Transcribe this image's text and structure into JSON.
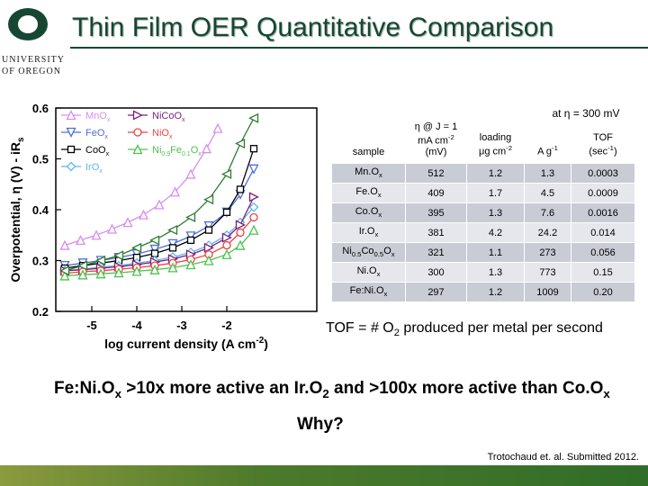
{
  "logo": {
    "line1": "UNIVERSITY",
    "line2": "OF OREGON",
    "color": "#154733",
    "accent": "#fee11a"
  },
  "slide": {
    "title": "Thin Film OER Quantitative Comparison"
  },
  "chart_data": {
    "type": "line",
    "xlabel_main": "log current density (A cm",
    "xlabel_sup": "-2",
    "xlabel_tail": ")",
    "ylabel_main": "Overpotential, η (V) - iR",
    "ylabel_sub": "s",
    "xlim": [
      -5.8,
      0.0
    ],
    "ylim": [
      0.2,
      0.6
    ],
    "xticks": [
      -5,
      -4,
      -3,
      -2
    ],
    "xtick_labels": [
      "-5",
      "-4",
      "-3",
      "-2"
    ],
    "yticks": [
      0.2,
      0.3,
      0.4,
      0.5,
      0.6
    ],
    "ytick_labels": [
      "0.2",
      "0.3",
      "0.4",
      "0.5",
      "0.6"
    ],
    "legend_position": "top-left",
    "series": [
      {
        "name": "MnOx",
        "legend_main": "MnO",
        "legend_sub": "x",
        "legend_sub2": "",
        "legend_rest": "",
        "color": "#d98cf0",
        "marker": "triangle-up",
        "x": [
          -5.6,
          -5.25,
          -4.9,
          -4.55,
          -4.2,
          -3.85,
          -3.5,
          -3.15,
          -2.8,
          -2.45,
          -2.2
        ],
        "y": [
          0.33,
          0.34,
          0.35,
          0.362,
          0.375,
          0.39,
          0.41,
          0.435,
          0.47,
          0.52,
          0.56
        ]
      },
      {
        "name": "FeOx",
        "legend_main": "FeO",
        "legend_sub": "x",
        "legend_sub2": "",
        "legend_rest": "",
        "color": "#4f6fd8",
        "marker": "triangle-down",
        "x": [
          -5.6,
          -5.2,
          -4.8,
          -4.4,
          -4.0,
          -3.6,
          -3.2,
          -2.8,
          -2.4,
          -2.0,
          -1.7,
          -1.4
        ],
        "y": [
          0.29,
          0.295,
          0.3,
          0.306,
          0.313,
          0.322,
          0.333,
          0.348,
          0.368,
          0.395,
          0.43,
          0.48
        ]
      },
      {
        "name": "CoOx",
        "legend_main": "CoO",
        "legend_sub": "x",
        "legend_sub2": "",
        "legend_rest": "",
        "color": "#000000",
        "marker": "square",
        "x": [
          -5.6,
          -5.2,
          -4.8,
          -4.4,
          -4.0,
          -3.6,
          -3.2,
          -2.8,
          -2.4,
          -2.0,
          -1.7,
          -1.4
        ],
        "y": [
          0.285,
          0.29,
          0.295,
          0.3,
          0.306,
          0.314,
          0.325,
          0.34,
          0.36,
          0.395,
          0.44,
          0.52
        ]
      },
      {
        "name": "IrOx",
        "legend_main": "IrO",
        "legend_sub": "x",
        "legend_sub2": "",
        "legend_rest": "",
        "color": "#5fb6ea",
        "marker": "diamond",
        "x": [
          -5.6,
          -5.2,
          -4.8,
          -4.4,
          -4.0,
          -3.6,
          -3.2,
          -2.8,
          -2.4,
          -2.0,
          -1.7,
          -1.4
        ],
        "y": [
          0.28,
          0.283,
          0.287,
          0.29,
          0.295,
          0.3,
          0.307,
          0.316,
          0.33,
          0.35,
          0.375,
          0.405
        ]
      },
      {
        "name": "NiCoOx",
        "legend_main": "Ni",
        "legend_sub": "",
        "legend_sub2": "",
        "legend_rest": "Co",
        "legend_rest_sub": "",
        "legend_tail": "O",
        "legend_tail_sub": "x",
        "color": "#7a1f7a",
        "marker": "triangle-right",
        "x": [
          -5.6,
          -5.2,
          -4.8,
          -4.4,
          -4.0,
          -3.6,
          -3.2,
          -2.8,
          -2.4,
          -2.0,
          -1.7,
          -1.4
        ],
        "y": [
          0.28,
          0.282,
          0.285,
          0.288,
          0.292,
          0.297,
          0.303,
          0.312,
          0.325,
          0.345,
          0.37,
          0.425
        ]
      },
      {
        "name": "NiOx",
        "legend_main": "NiO",
        "legend_sub": "x",
        "legend_sub2": "",
        "legend_rest": "",
        "color": "#e84545",
        "marker": "circle",
        "x": [
          -5.6,
          -5.2,
          -4.8,
          -4.4,
          -4.0,
          -3.6,
          -3.2,
          -2.8,
          -2.4,
          -2.0,
          -1.7,
          -1.4
        ],
        "y": [
          0.275,
          0.278,
          0.28,
          0.283,
          0.286,
          0.29,
          0.295,
          0.302,
          0.312,
          0.33,
          0.355,
          0.385
        ]
      },
      {
        "name": "NixFe1-xOx",
        "legend_main": "Ni",
        "legend_sub": "0.9",
        "legend_sub2": "",
        "legend_rest": "Fe",
        "legend_rest_sub": "0.1",
        "legend_tail": "O",
        "legend_tail_sub": "x",
        "color": "#4dc24d",
        "marker": "triangle-up",
        "x": [
          -5.6,
          -5.2,
          -4.8,
          -4.4,
          -4.0,
          -3.6,
          -3.2,
          -2.8,
          -2.4,
          -2.0,
          -1.7,
          -1.4
        ],
        "y": [
          0.27,
          0.272,
          0.274,
          0.276,
          0.279,
          0.282,
          0.286,
          0.292,
          0.3,
          0.312,
          0.33,
          0.36
        ]
      },
      {
        "name": "Ni0.5Co0.5Ox",
        "legend_main": "",
        "legend_sub": "",
        "legend_sub2": "",
        "legend_rest": "",
        "color": "#2e7d32",
        "marker": "triangle-left",
        "x": [
          -5.6,
          -5.2,
          -4.8,
          -4.4,
          -4.0,
          -3.6,
          -3.2,
          -2.8,
          -2.4,
          -2.0,
          -1.7,
          -1.4
        ],
        "y": [
          0.28,
          0.29,
          0.3,
          0.31,
          0.325,
          0.34,
          0.36,
          0.385,
          0.42,
          0.47,
          0.53,
          0.58
        ]
      }
    ]
  },
  "table": {
    "col_header_sample": "sample",
    "col_header_eta_line1": "η @ J = 1",
    "col_header_eta_line2": "mA cm",
    "col_header_eta_sup": "-2",
    "col_header_eta_line3": "(mV)",
    "col_header_loading_line1": "loading",
    "col_header_loading_line2": "μg cm",
    "col_header_loading_sup": "-2",
    "col_header_tof_group": "at η = 300 mV",
    "col_header_ag_main": "A g",
    "col_header_ag_sup": "-1",
    "col_header_tof_line1": "TOF",
    "col_header_tof_line2": "(sec",
    "col_header_tof_sup": "-1",
    "col_header_tof_close": ")",
    "rows": [
      {
        "sample_main": "Mn.O",
        "sample_sub": "x",
        "sample_mid": "",
        "sample_mid_sub": "",
        "sample_tail": "",
        "sample_tail_sub": "",
        "eta": "512",
        "loading": "1.2",
        "ag": "1.3",
        "tof": "0.0003"
      },
      {
        "sample_main": "Fe.O",
        "sample_sub": "x",
        "sample_mid": "",
        "sample_mid_sub": "",
        "sample_tail": "",
        "sample_tail_sub": "",
        "eta": "409",
        "loading": "1.7",
        "ag": "4.5",
        "tof": "0.0009"
      },
      {
        "sample_main": "Co.O",
        "sample_sub": "x",
        "sample_mid": "",
        "sample_mid_sub": "",
        "sample_tail": "",
        "sample_tail_sub": "",
        "eta": "395",
        "loading": "1.3",
        "ag": "7.6",
        "tof": "0.0016"
      },
      {
        "sample_main": "Ir.O",
        "sample_sub": "x",
        "sample_mid": "",
        "sample_mid_sub": "",
        "sample_tail": "",
        "sample_tail_sub": "",
        "eta": "381",
        "loading": "4.2",
        "ag": "24.2",
        "tof": "0.014"
      },
      {
        "sample_main": "Ni",
        "sample_sub": "0.5",
        "sample_mid": "Co",
        "sample_mid_sub": "0.5",
        "sample_tail": "O",
        "sample_tail_sub": "x",
        "eta": "321",
        "loading": "1.1",
        "ag": "273",
        "tof": "0.056"
      },
      {
        "sample_main": "Ni.O",
        "sample_sub": "x",
        "sample_mid": "",
        "sample_mid_sub": "",
        "sample_tail": "",
        "sample_tail_sub": "",
        "eta": "300",
        "loading": "1.3",
        "ag": "773",
        "tof": "0.15"
      },
      {
        "sample_main": "Fe:Ni.O",
        "sample_sub": "x",
        "sample_mid": "",
        "sample_mid_sub": "",
        "sample_tail": "",
        "sample_tail_sub": "",
        "eta": "297",
        "loading": "1.2",
        "ag": "1009",
        "tof": "0.20"
      }
    ]
  },
  "tof_definition": {
    "prefix": "TOF = # O",
    "sub": "2",
    "suffix": " produced per metal per second"
  },
  "conclusion": {
    "part1": "Fe:Ni.O",
    "sub1": "x",
    "part2": " >10x more active an Ir.O",
    "sub2": "2",
    "part3": " and >100x more active than Co.O",
    "sub3": "x"
  },
  "question": "Why?",
  "citation": "Trotochaud et. al. Submitted 2012."
}
